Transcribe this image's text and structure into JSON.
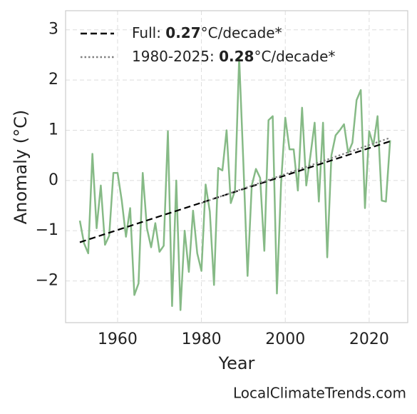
{
  "chart_data": {
    "type": "line",
    "xlabel": "Year",
    "ylabel": "Anomaly (°C)",
    "source": "LocalClimateTrends.com",
    "x": [
      1951,
      1952,
      1953,
      1954,
      1955,
      1956,
      1957,
      1958,
      1959,
      1960,
      1961,
      1962,
      1963,
      1964,
      1965,
      1966,
      1967,
      1968,
      1969,
      1970,
      1971,
      1972,
      1973,
      1974,
      1975,
      1976,
      1977,
      1978,
      1979,
      1980,
      1981,
      1982,
      1983,
      1984,
      1985,
      1986,
      1987,
      1988,
      1989,
      1990,
      1991,
      1992,
      1993,
      1994,
      1995,
      1996,
      1997,
      1998,
      1999,
      2000,
      2001,
      2002,
      2003,
      2004,
      2005,
      2006,
      2007,
      2008,
      2009,
      2010,
      2011,
      2012,
      2013,
      2014,
      2015,
      2016,
      2017,
      2018,
      2019,
      2020,
      2021,
      2022,
      2023,
      2024,
      2025
    ],
    "series": [
      {
        "color": "#86ba86",
        "style": "solid",
        "values": [
          -0.8,
          -1.25,
          -1.45,
          0.53,
          -0.95,
          -0.1,
          -1.28,
          -1.1,
          0.15,
          0.15,
          -0.4,
          -1.12,
          -0.55,
          -2.28,
          -2.05,
          0.15,
          -0.95,
          -1.33,
          -0.85,
          -1.42,
          -1.3,
          0.98,
          -2.5,
          0.0,
          -2.58,
          -1.0,
          -1.82,
          -0.6,
          -1.45,
          -1.8,
          -0.08,
          -0.62,
          -2.08,
          0.25,
          0.2,
          1.0,
          -0.45,
          -0.2,
          2.45,
          0.35,
          -1.9,
          -0.1,
          0.23,
          0.05,
          -1.4,
          1.2,
          1.28,
          -2.25,
          -0.05,
          1.25,
          0.62,
          0.62,
          -0.2,
          1.45,
          -0.1,
          0.5,
          1.15,
          -0.42,
          1.15,
          -1.53,
          0.5,
          0.9,
          1.0,
          1.12,
          0.55,
          0.75,
          1.6,
          1.8,
          -0.55,
          0.98,
          0.7,
          1.28,
          -0.4,
          -0.42,
          0.8
        ]
      },
      {
        "name": [
          "Full: ",
          "0.27",
          "°C/decade*"
        ],
        "color": "#000000",
        "style": "dashed",
        "x": [
          1951,
          2025
        ],
        "values": [
          -1.23,
          0.78
        ]
      },
      {
        "name": [
          "1980-2025: ",
          "0.28",
          "°C/decade*"
        ],
        "color": "#808080",
        "style": "dotted",
        "x": [
          1980,
          2025
        ],
        "values": [
          -0.45,
          0.85
        ]
      }
    ],
    "xlim": [
      1947.6,
      2029.2
    ],
    "xticks": [
      1960,
      1980,
      2000,
      2020
    ],
    "ylim": [
      -2.83,
      3.38
    ],
    "yticks": [
      {
        "value": -2,
        "label": "−2"
      },
      {
        "value": -1,
        "label": "−1"
      },
      0,
      1,
      2,
      3
    ],
    "grid": true,
    "legend": "upper left"
  }
}
